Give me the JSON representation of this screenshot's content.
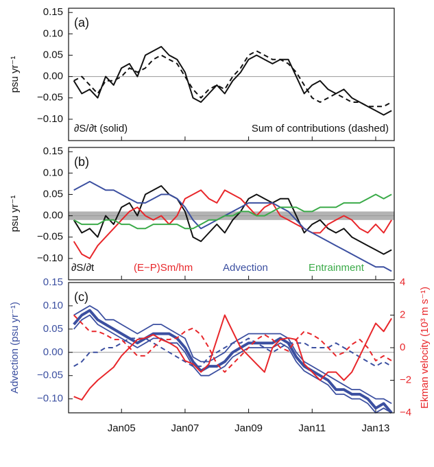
{
  "chart_data": [
    {
      "type": "line",
      "panel_label": "(a)",
      "ylabel": "psu yr⁻¹",
      "x": [
        "2003-07",
        "2003-10",
        "2004-01",
        "2004-04",
        "2004-07",
        "2004-10",
        "2005-01",
        "2005-04",
        "2005-07",
        "2005-10",
        "2006-01",
        "2006-04",
        "2006-07",
        "2006-10",
        "2007-01",
        "2007-04",
        "2007-07",
        "2007-10",
        "2008-01",
        "2008-04",
        "2008-07",
        "2008-10",
        "2009-01",
        "2009-04",
        "2009-07",
        "2009-10",
        "2010-01",
        "2010-04",
        "2010-07",
        "2010-10",
        "2011-01",
        "2011-04",
        "2011-07",
        "2011-10",
        "2012-01",
        "2012-04",
        "2012-07",
        "2012-10",
        "2013-01",
        "2013-04",
        "2013-07"
      ],
      "xlim": [
        "2003-05",
        "2013-08"
      ],
      "ylim": [
        -0.15,
        0.16
      ],
      "yticks": [
        {
          "value": -0.1,
          "label": "−0.10"
        },
        {
          "value": -0.05,
          "label": "−0.05"
        },
        {
          "value": 0,
          "label": "0.00"
        },
        {
          "value": 0.05,
          "label": "0.05"
        },
        {
          "value": 0.1,
          "label": "0.10"
        },
        {
          "value": 0.15,
          "label": "0.15"
        }
      ],
      "reference_line": 0,
      "series": [
        {
          "name": "∂S/∂t (solid)",
          "color": "#111111",
          "dash": false,
          "values": [
            -0.01,
            -0.04,
            -0.03,
            -0.05,
            0,
            -0.02,
            0.02,
            0.03,
            0,
            0.05,
            0.06,
            0.07,
            0.05,
            0.04,
            0.01,
            -0.05,
            -0.06,
            -0.04,
            -0.02,
            -0.04,
            -0.01,
            0.01,
            0.04,
            0.05,
            0.04,
            0.03,
            0.04,
            0.04,
            0,
            -0.04,
            -0.02,
            -0.01,
            -0.03,
            -0.04,
            -0.03,
            -0.05,
            -0.06,
            -0.07,
            -0.08,
            -0.09,
            -0.08
          ]
        },
        {
          "name": "Sum of contributions (dashed)",
          "color": "#111111",
          "dash": true,
          "values": [
            -0.01,
            0,
            -0.02,
            -0.04,
            -0.01,
            -0.01,
            0,
            0.02,
            0.01,
            0.02,
            0.04,
            0.05,
            0.04,
            0.03,
            0,
            -0.03,
            -0.05,
            -0.03,
            -0.02,
            -0.03,
            0,
            0.02,
            0.05,
            0.06,
            0.05,
            0.04,
            0.04,
            0.03,
            0.01,
            -0.02,
            -0.05,
            -0.06,
            -0.05,
            -0.04,
            -0.05,
            -0.06,
            -0.06,
            -0.07,
            -0.07,
            -0.07,
            -0.06
          ]
        }
      ]
    },
    {
      "type": "line",
      "panel_label": "(b)",
      "ylabel": "psu yr⁻¹",
      "x": [
        "2003-07",
        "2003-10",
        "2004-01",
        "2004-04",
        "2004-07",
        "2004-10",
        "2005-01",
        "2005-04",
        "2005-07",
        "2005-10",
        "2006-01",
        "2006-04",
        "2006-07",
        "2006-10",
        "2007-01",
        "2007-04",
        "2007-07",
        "2007-10",
        "2008-01",
        "2008-04",
        "2008-07",
        "2008-10",
        "2009-01",
        "2009-04",
        "2009-07",
        "2009-10",
        "2010-01",
        "2010-04",
        "2010-07",
        "2010-10",
        "2011-01",
        "2011-04",
        "2011-07",
        "2011-10",
        "2012-01",
        "2012-04",
        "2012-07",
        "2012-10",
        "2013-01",
        "2013-04",
        "2013-07"
      ],
      "xlim": [
        "2003-05",
        "2013-08"
      ],
      "ylim": [
        -0.15,
        0.16
      ],
      "yticks": [
        {
          "value": -0.1,
          "label": "−0.10"
        },
        {
          "value": -0.05,
          "label": "−0.05"
        },
        {
          "value": 0,
          "label": "0.00"
        },
        {
          "value": 0.05,
          "label": "0.05"
        },
        {
          "value": 0.1,
          "label": "0.10"
        },
        {
          "value": 0.15,
          "label": "0.15"
        }
      ],
      "reference_line": 0,
      "band": [
        -0.01,
        0.01
      ],
      "series": [
        {
          "name": "∂S/∂t",
          "color": "#111111",
          "values": [
            -0.01,
            -0.04,
            -0.03,
            -0.05,
            0,
            -0.02,
            0.02,
            0.03,
            0,
            0.05,
            0.06,
            0.07,
            0.05,
            0.04,
            0.01,
            -0.05,
            -0.06,
            -0.04,
            -0.02,
            -0.04,
            -0.01,
            0.01,
            0.04,
            0.05,
            0.04,
            0.03,
            0.04,
            0.04,
            0,
            -0.04,
            -0.02,
            -0.01,
            -0.03,
            -0.04,
            -0.03,
            -0.05,
            -0.06,
            -0.07,
            -0.08,
            -0.09,
            -0.08
          ]
        },
        {
          "name": "(E−P)Sm/hm",
          "color": "#e8262a",
          "values": [
            -0.06,
            -0.09,
            -0.1,
            -0.07,
            -0.05,
            -0.03,
            -0.01,
            0.01,
            0.02,
            0,
            -0.01,
            0,
            -0.02,
            0,
            0.04,
            0.05,
            0.06,
            0.04,
            0.03,
            0.06,
            0.05,
            0.04,
            0.02,
            0,
            0.02,
            0.03,
            0,
            -0.01,
            -0.02,
            -0.03,
            -0.04,
            -0.04,
            -0.02,
            -0.01,
            0,
            -0.01,
            -0.03,
            -0.04,
            -0.02,
            -0.04,
            -0.01
          ]
        },
        {
          "name": "Advection",
          "color": "#3b4fa0",
          "values": [
            0.06,
            0.07,
            0.08,
            0.07,
            0.06,
            0.06,
            0.05,
            0.04,
            0.03,
            0.03,
            0.04,
            0.05,
            0.05,
            0.04,
            0.02,
            -0.01,
            -0.03,
            -0.02,
            -0.01,
            0,
            0.01,
            0.02,
            0.03,
            0.03,
            0.03,
            0.03,
            0.02,
            0.01,
            -0.01,
            -0.03,
            -0.04,
            -0.05,
            -0.06,
            -0.07,
            -0.08,
            -0.09,
            -0.1,
            -0.11,
            -0.12,
            -0.12,
            -0.13
          ]
        },
        {
          "name": "Entrainment",
          "color": "#3aaa48",
          "values": [
            -0.01,
            -0.02,
            -0.02,
            -0.02,
            -0.01,
            -0.01,
            -0.02,
            -0.02,
            -0.03,
            -0.03,
            -0.02,
            -0.02,
            -0.02,
            -0.02,
            -0.03,
            -0.03,
            -0.02,
            -0.01,
            -0.01,
            0,
            0,
            0.01,
            0.01,
            0,
            0,
            0.01,
            0.02,
            0.02,
            0.02,
            0.01,
            0.01,
            0.02,
            0.02,
            0.02,
            0.03,
            0.03,
            0.03,
            0.04,
            0.05,
            0.04,
            0.05
          ]
        }
      ]
    },
    {
      "type": "line",
      "panel_label": "(c)",
      "ylabel": "Advection (psu yr⁻¹)",
      "y2label": "Ekman velocity (10³ m s⁻¹)",
      "y_color": "#3b4fa0",
      "y2_color": "#e8262a",
      "x": [
        "2003-07",
        "2003-10",
        "2004-01",
        "2004-04",
        "2004-07",
        "2004-10",
        "2005-01",
        "2005-04",
        "2005-07",
        "2005-10",
        "2006-01",
        "2006-04",
        "2006-07",
        "2006-10",
        "2007-01",
        "2007-04",
        "2007-07",
        "2007-10",
        "2008-01",
        "2008-04",
        "2008-07",
        "2008-10",
        "2009-01",
        "2009-04",
        "2009-07",
        "2009-10",
        "2010-01",
        "2010-04",
        "2010-07",
        "2010-10",
        "2011-01",
        "2011-04",
        "2011-07",
        "2011-10",
        "2012-01",
        "2012-04",
        "2012-07",
        "2012-10",
        "2013-01",
        "2013-04",
        "2013-07"
      ],
      "xlim": [
        "2003-05",
        "2013-08"
      ],
      "ylim": [
        -0.13,
        0.15
      ],
      "y2lim": [
        -4,
        4
      ],
      "xticks": [
        {
          "value": "2005-01",
          "label": "Jan05"
        },
        {
          "value": "2007-01",
          "label": "Jan07"
        },
        {
          "value": "2009-01",
          "label": "Jan09"
        },
        {
          "value": "2011-01",
          "label": "Jan11"
        },
        {
          "value": "2013-01",
          "label": "Jan13"
        }
      ],
      "yticks": [
        {
          "value": -0.1,
          "label": "−0.10"
        },
        {
          "value": -0.05,
          "label": "−0.05"
        },
        {
          "value": 0,
          "label": "0.00"
        },
        {
          "value": 0.05,
          "label": "0.05"
        },
        {
          "value": 0.1,
          "label": "0.10"
        },
        {
          "value": 0.15,
          "label": "0.15"
        }
      ],
      "y2ticks": [
        {
          "value": -4,
          "label": "−4"
        },
        {
          "value": -2,
          "label": "−2"
        },
        0,
        2,
        4
      ],
      "reference_line": 0,
      "series": [
        {
          "color": "#3b4fa0",
          "width": 1.8,
          "values": [
            0.08,
            0.09,
            0.1,
            0.09,
            0.07,
            0.07,
            0.06,
            0.05,
            0.04,
            0.05,
            0.06,
            0.06,
            0.05,
            0.04,
            0.03,
            -0.01,
            -0.02,
            -0.02,
            -0.01,
            0,
            0.02,
            0.03,
            0.04,
            0.04,
            0.04,
            0.04,
            0.04,
            0.03,
            0,
            -0.02,
            -0.03,
            -0.04,
            -0.05,
            -0.06,
            -0.07,
            -0.08,
            -0.08,
            -0.09,
            -0.1,
            -0.1,
            -0.11
          ]
        },
        {
          "color": "#3b4fa0",
          "width": 1.8,
          "values": [
            0.05,
            0.07,
            0.08,
            0.06,
            0.05,
            0.04,
            0.03,
            0.02,
            0.01,
            0.02,
            0.03,
            0.03,
            0.02,
            0.02,
            0,
            -0.03,
            -0.05,
            -0.05,
            -0.04,
            -0.03,
            -0.01,
            0,
            0.01,
            0.01,
            0.01,
            0.01,
            0.02,
            0.01,
            -0.02,
            -0.04,
            -0.05,
            -0.06,
            -0.07,
            -0.09,
            -0.09,
            -0.1,
            -0.1,
            -0.11,
            -0.13,
            -0.12,
            -0.13
          ]
        },
        {
          "color": "#3b4fa0",
          "width": 4,
          "values": [
            0.06,
            0.08,
            0.09,
            0.07,
            0.06,
            0.05,
            0.04,
            0.03,
            0.02,
            0.03,
            0.04,
            0.04,
            0.04,
            0.03,
            0.01,
            -0.02,
            -0.04,
            -0.03,
            -0.03,
            -0.02,
            0,
            0.01,
            0.02,
            0.02,
            0.02,
            0.02,
            0.03,
            0.02,
            -0.01,
            -0.03,
            -0.04,
            -0.05,
            -0.06,
            -0.08,
            -0.08,
            -0.09,
            -0.09,
            -0.1,
            -0.12,
            -0.11,
            -0.13
          ]
        },
        {
          "color": "#3b4fa0",
          "width": 2,
          "dash": true,
          "values": [
            -0.03,
            -0.02,
            0,
            0,
            0.01,
            0.01,
            0.02,
            0.03,
            0.03,
            0.03,
            0.02,
            0.01,
            0,
            -0.01,
            -0.02,
            -0.03,
            -0.03,
            -0.01,
            0,
            0.01,
            0.02,
            0.02,
            0.03,
            0.02,
            0.01,
            0,
            0.01,
            0.02,
            0.02,
            0.02,
            0.01,
            0.01,
            0.01,
            0.02,
            0.01,
            0,
            -0.01,
            -0.02,
            -0.03,
            -0.02,
            -0.03
          ]
        },
        {
          "color": "#e8262a",
          "width": 2,
          "axis": "y2",
          "values": [
            -3,
            -3.2,
            -2.5,
            -2,
            -1.6,
            -1.2,
            -0.5,
            0,
            0.5,
            0.6,
            0.8,
            0.5,
            0.3,
            0,
            -0.8,
            -1,
            -1.5,
            -1,
            0.5,
            2,
            1,
            0,
            -0.5,
            -1,
            -1.5,
            0,
            0.5,
            0.6,
            0.5,
            -1,
            -1.5,
            -2,
            -1.5,
            -1.5,
            -2,
            -1.5,
            -0.5,
            0.5,
            1.5,
            1,
            1.8
          ]
        },
        {
          "color": "#e8262a",
          "width": 2,
          "axis": "y2",
          "dash": true,
          "values": [
            2,
            1.5,
            1,
            1,
            0.8,
            0.5,
            0.5,
            0,
            -0.5,
            -0.5,
            0,
            0.5,
            0.5,
            0.6,
            1,
            1.2,
            0.8,
            0,
            -1,
            -1.5,
            -1,
            -0.5,
            0,
            0.5,
            0.8,
            0.5,
            0,
            -0.2,
            0.5,
            1,
            0.8,
            0.5,
            0,
            -0.5,
            -0.3,
            0.2,
            0.5,
            0,
            -0.8,
            -0.5,
            -0.8
          ]
        }
      ]
    }
  ]
}
